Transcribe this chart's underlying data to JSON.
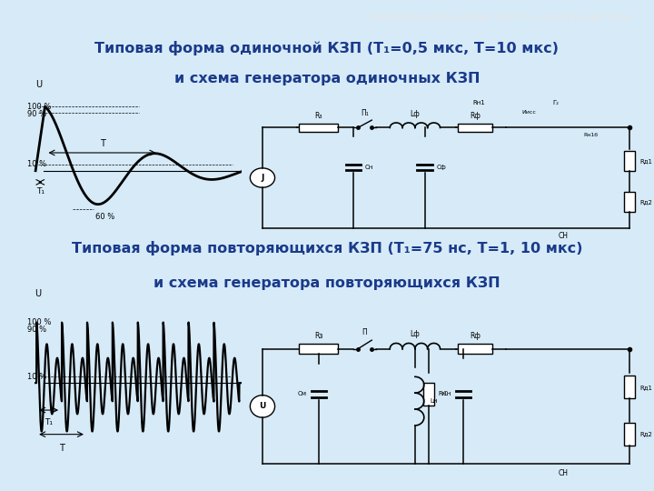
{
  "bg_color": "#d6eaf8",
  "header_bg": "#4a86b8",
  "header_text": "Электромагнитная совместимость в электроэнергетике",
  "title1_line1": "Типовая форма одиночной КЗП (Т₁=0,5 мкс, Т=10 мкс)",
  "title1_line2": "и схема генератора одиночных КЗП",
  "title2_line1": "Типовая форма повторяющихся КЗП (Т₁=75 нс, Т=1, 10 мкс)",
  "title2_line2": "и схема генератора повторяющихся КЗП",
  "title_color": "#1a3a8a",
  "header_text_color": "#e8e8e8"
}
